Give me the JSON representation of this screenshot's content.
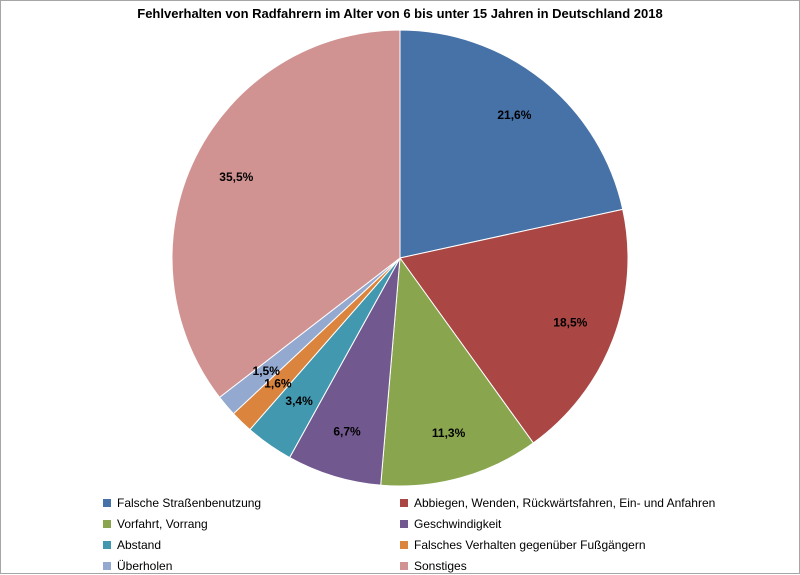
{
  "chart_data": {
    "type": "pie",
    "title": "Fehlverhalten von Radfahrern im Alter von 6 bis unter 15 Jahren in Deutschland 2018",
    "legend_placement": "bottom",
    "slices": [
      {
        "label": "Falsche Straßenbenutzung",
        "value": 21.6,
        "value_label": "21,6%",
        "color": "#4672a8"
      },
      {
        "label": "Abbiegen, Wenden, Rückwärtsfahren, Ein- und Anfahren",
        "value": 18.5,
        "value_label": "18,5%",
        "color": "#aa4643"
      },
      {
        "label": "Vorfahrt, Vorrang",
        "value": 11.3,
        "value_label": "11,3%",
        "color": "#89a54e"
      },
      {
        "label": "Geschwindigkeit",
        "value": 6.7,
        "value_label": "6,7%",
        "color": "#71588f"
      },
      {
        "label": "Abstand",
        "value": 3.4,
        "value_label": "3,4%",
        "color": "#4198af"
      },
      {
        "label": "Falsches Verhalten gegenüber Fußgängern",
        "value": 1.6,
        "value_label": "1,6%",
        "color": "#db843d"
      },
      {
        "label": "Überholen",
        "value": 1.5,
        "value_label": "1,5%",
        "color": "#93a9cf"
      },
      {
        "label": "Sonstiges",
        "value": 35.5,
        "value_label": "35,5%",
        "color": "#d19392"
      }
    ]
  }
}
